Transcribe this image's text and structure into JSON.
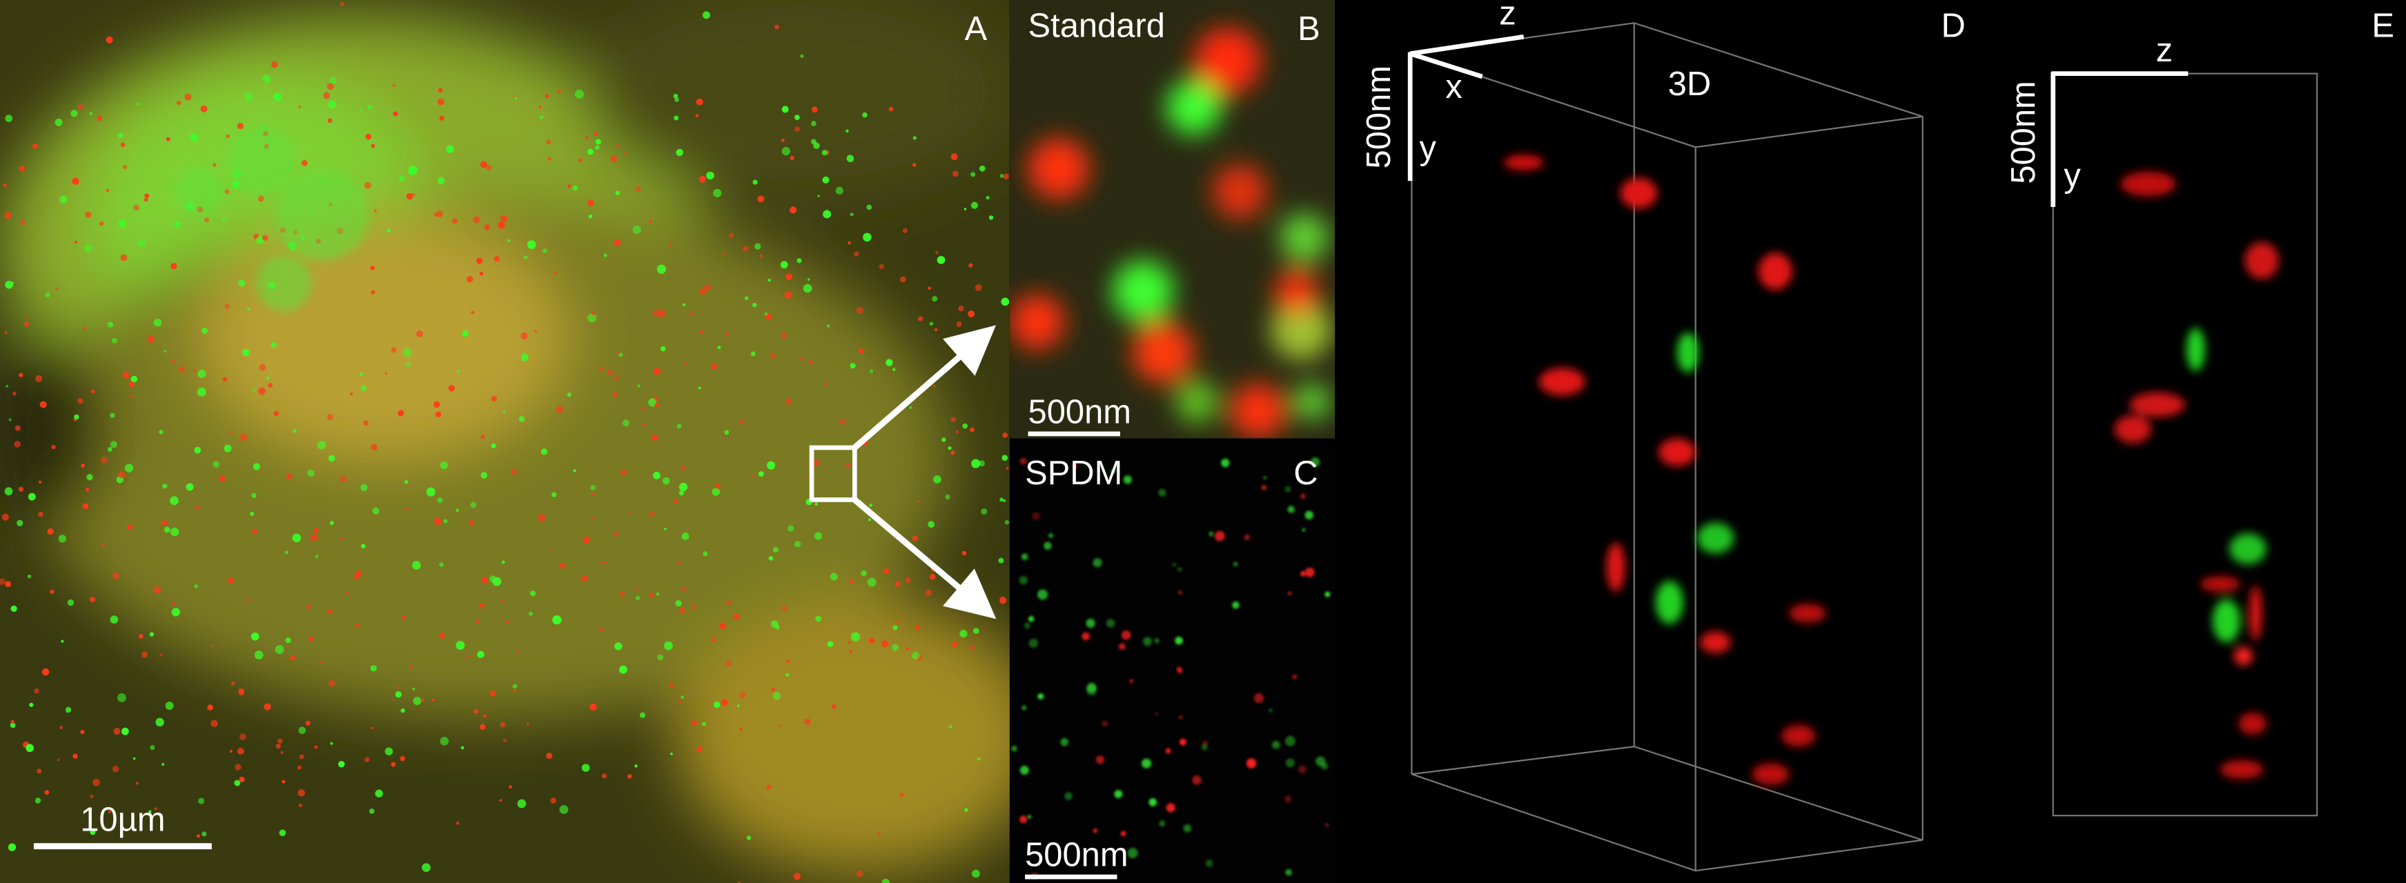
{
  "panels": [
    {
      "label": "A",
      "scale_bar": "10µm"
    },
    {
      "label": "B",
      "title": "Standard",
      "scale_bar": "500nm"
    },
    {
      "label": "C",
      "title": "SPDM",
      "scale_bar": "500nm"
    },
    {
      "label": "D",
      "title": "3D",
      "axes": {
        "z": "z",
        "x": "x",
        "y": "y",
        "scale": "500nm"
      }
    },
    {
      "label": "E",
      "axes": {
        "z": "z",
        "y": "y",
        "scale": "500nm"
      }
    }
  ]
}
